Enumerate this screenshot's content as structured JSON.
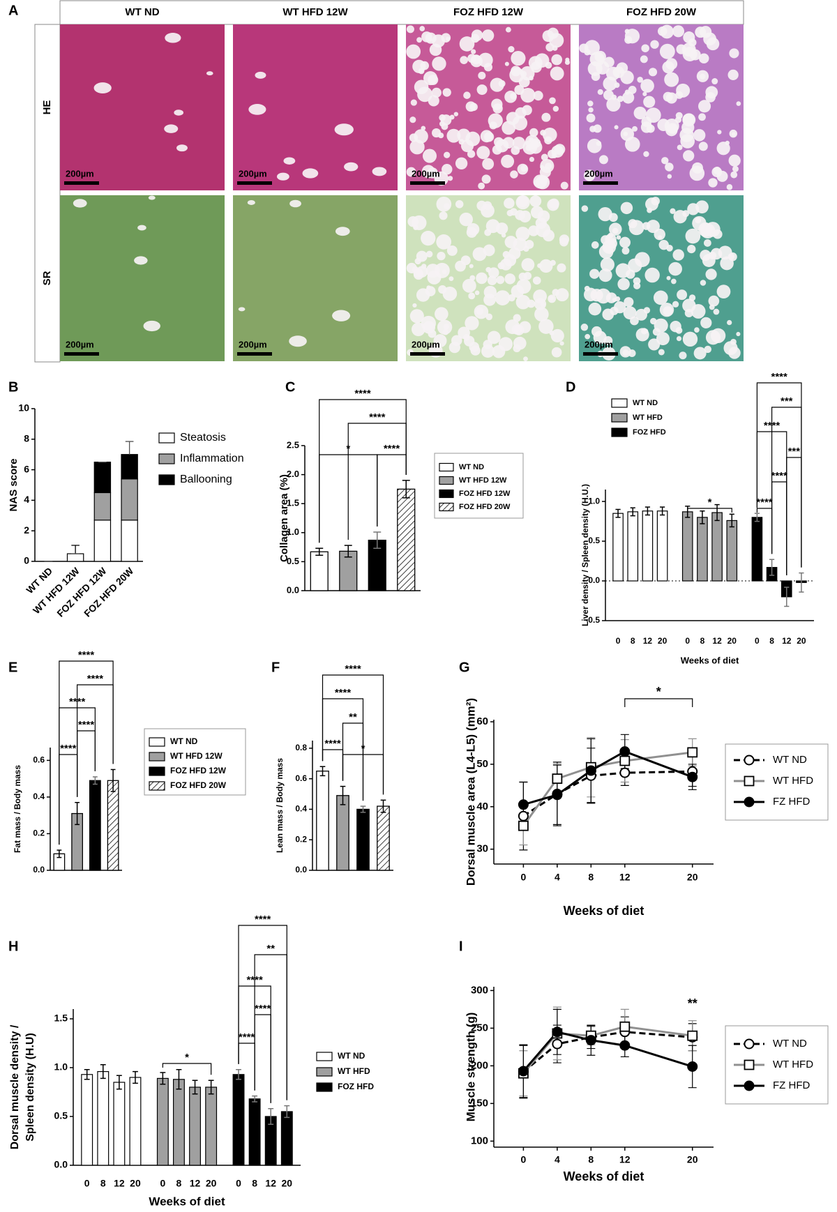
{
  "figure": {
    "panel": "A",
    "columns": [
      "WT ND",
      "WT HFD 12W",
      "FOZ HFD 12W",
      "FOZ HFD 20W"
    ],
    "rows": [
      "HE",
      "SR"
    ],
    "scale_bar": "200µm"
  },
  "chart_data": [
    {
      "type": "stacked_bar",
      "panel": "B",
      "y_label": "NAS score",
      "categories": [
        "WT ND",
        "WT HFD 12W",
        "FOZ HFD 12W",
        "FOZ HFD 20W"
      ],
      "ylim": [
        0,
        10
      ],
      "yticks": [
        0,
        2,
        4,
        6,
        8,
        10
      ],
      "series": [
        {
          "name": "Steatosis",
          "color": "#ffffff",
          "values": [
            0,
            0.5,
            2.7,
            2.7
          ],
          "errors": [
            0,
            0.55,
            0.25,
            0.8
          ]
        },
        {
          "name": "Inflammation",
          "color": "#a0a0a0",
          "values": [
            0,
            0,
            1.8,
            2.7
          ],
          "errors": [
            0,
            0,
            1.0,
            0.45
          ]
        },
        {
          "name": "Ballooning",
          "color": "#000000",
          "values": [
            0,
            0,
            2.0,
            1.6
          ],
          "errors": [
            0,
            0,
            0,
            0.85
          ]
        }
      ]
    },
    {
      "type": "bar",
      "panel": "C",
      "y_label": "Collagen area (%)",
      "categories": [
        "WT ND",
        "WT HFD 12W",
        "FOZ HFD 12W",
        "FOZ HFD 20W"
      ],
      "colors": [
        "#ffffff",
        "#a0a0a0",
        "#000000",
        "#ffffff"
      ],
      "hatched": [
        false,
        false,
        false,
        true
      ],
      "values": [
        0.67,
        0.68,
        0.87,
        1.75
      ],
      "errors": [
        0.06,
        0.1,
        0.14,
        0.15
      ],
      "ylim": [
        0,
        2.5
      ],
      "yticks": [
        {
          "value": 0,
          "label": "0.0"
        },
        0.5,
        {
          "value": 1,
          "label": "1.0"
        },
        1.5,
        {
          "value": 2,
          "label": "2.0"
        },
        2.5
      ],
      "annotations": [
        "****",
        "****",
        "*",
        "****"
      ]
    },
    {
      "type": "grouped_bar",
      "panel": "D",
      "y_label": "Liver density  / Spleen density (H.U.)",
      "x_label": "Weeks of diet",
      "categories": [
        "0",
        "8",
        "12",
        "20"
      ],
      "series": [
        {
          "name": "WT ND",
          "color": "#ffffff",
          "values": [
            0.85,
            0.87,
            0.88,
            0.88
          ],
          "errors": [
            0.05,
            0.05,
            0.05,
            0.05
          ]
        },
        {
          "name": "WT HFD",
          "color": "#a0a0a0",
          "values": [
            0.87,
            0.8,
            0.86,
            0.76
          ],
          "errors": [
            0.07,
            0.08,
            0.1,
            0.08
          ]
        },
        {
          "name": "FOZ HFD",
          "color": "#000000",
          "values": [
            0.8,
            0.17,
            -0.2,
            -0.02
          ],
          "errors": [
            0.05,
            0.1,
            0.12,
            0.12
          ]
        }
      ],
      "ylim": [
        -0.5,
        1.15
      ],
      "yticks": [
        -0.5,
        {
          "value": 0,
          "label": "0.0"
        },
        0.5,
        {
          "value": 1,
          "label": "1.0"
        }
      ],
      "zero_line": true,
      "annotations": [
        "****",
        "***",
        "****",
        "***",
        "****",
        "****",
        "*"
      ]
    },
    {
      "type": "bar",
      "panel": "E",
      "y_label": "Fat mass / Body mass",
      "categories": [
        "WT ND",
        "WT HFD 12W",
        "FOZ HFD 12W",
        "FOZ HFD 20W"
      ],
      "colors": [
        "#ffffff",
        "#a0a0a0",
        "#000000",
        "#ffffff"
      ],
      "hatched": [
        false,
        false,
        false,
        true
      ],
      "values": [
        0.09,
        0.31,
        0.49,
        0.49
      ],
      "errors": [
        0.02,
        0.06,
        0.02,
        0.06
      ],
      "ylim": [
        0,
        0.67
      ],
      "yticks": [
        {
          "value": 0,
          "label": "0.0"
        },
        0.2,
        0.4,
        0.6
      ],
      "annotations": [
        "****",
        "****",
        "****",
        "****",
        "****"
      ]
    },
    {
      "type": "bar",
      "panel": "F",
      "y_label": "Lean mass / Body mass",
      "colors": [
        "#ffffff",
        "#a0a0a0",
        "#000000",
        "#ffffff"
      ],
      "hatched": [
        false,
        false,
        false,
        true
      ],
      "values": [
        0.65,
        0.49,
        0.4,
        0.42
      ],
      "errors": [
        0.03,
        0.06,
        0.02,
        0.04
      ],
      "ylim": [
        0,
        0.85
      ],
      "yticks": [
        {
          "value": 0,
          "label": "0.0"
        },
        0.2,
        0.4,
        0.6,
        0.8
      ],
      "annotations": [
        "****",
        "****",
        "**",
        "****",
        "*"
      ]
    },
    {
      "type": "line",
      "panel": "G",
      "y_label": "Dorsal muscle area (L4-L5) (mm²)",
      "x_label": "Weeks of diet",
      "x": [
        0,
        4,
        8,
        12,
        20
      ],
      "xlim": [
        -3.5,
        22.5
      ],
      "xticks": [
        0,
        4,
        8,
        12,
        20
      ],
      "ylim": [
        26.5,
        60.5
      ],
      "yticks": [
        30,
        40,
        50,
        60
      ],
      "series": [
        {
          "name": "WT ND",
          "color": "#000000",
          "dashed": true,
          "marker": "circle",
          "marker_fill": "#ffffff",
          "values": [
            37.8,
            43,
            47.3,
            48,
            48.3
          ],
          "errors": [
            8,
            7.5,
            6.5,
            3,
            3.5
          ]
        },
        {
          "name": "WT HFD",
          "color": "#909090",
          "dashed": false,
          "marker": "square",
          "marker_fill": "#ffffff",
          "values": [
            35.5,
            46.6,
            49.3,
            50.8,
            52.8
          ],
          "errors": [
            4.5,
            3.5,
            7,
            5,
            3.2
          ]
        },
        {
          "name": "FZ HFD",
          "color": "#000000",
          "dashed": false,
          "marker": "circle",
          "marker_fill": "#000000",
          "values": [
            40.5,
            42.8,
            48.5,
            53,
            47
          ],
          "errors": [
            5.3,
            7,
            7.5,
            4,
            3
          ]
        }
      ],
      "annotations": [
        "*"
      ]
    },
    {
      "type": "grouped_bar",
      "panel": "H",
      "y_label": [
        "Dorsal muscle density /",
        "Spleen density (H.U)"
      ],
      "x_label": "Weeks of diet",
      "categories": [
        "0",
        "8",
        "12",
        "20"
      ],
      "series": [
        {
          "name": "WT ND",
          "color": "#ffffff",
          "values": [
            0.93,
            0.96,
            0.85,
            0.9
          ],
          "errors": [
            0.05,
            0.07,
            0.07,
            0.06
          ]
        },
        {
          "name": "WT HFD",
          "color": "#a0a0a0",
          "values": [
            0.89,
            0.88,
            0.8,
            0.8
          ],
          "errors": [
            0.06,
            0.1,
            0.07,
            0.07
          ]
        },
        {
          "name": "FOZ HFD",
          "color": "#000000",
          "values": [
            0.93,
            0.68,
            0.5,
            0.55
          ],
          "errors": [
            0.05,
            0.03,
            0.08,
            0.06
          ]
        }
      ],
      "ylim": [
        0,
        1.6
      ],
      "yticks": [
        {
          "value": 0,
          "label": "0.0"
        },
        0.5,
        {
          "value": 1,
          "label": "1.0"
        },
        1.5
      ],
      "annotations": [
        "****",
        "**",
        "****",
        "****",
        "****",
        "*"
      ]
    },
    {
      "type": "line",
      "panel": "I",
      "y_label": "Muscle strength (g)",
      "x_label": "Weeks of diet",
      "x": [
        0,
        4,
        8,
        12,
        20
      ],
      "xlim": [
        -3.5,
        22.5
      ],
      "xticks": [
        0,
        4,
        8,
        12,
        20
      ],
      "ylim": [
        92,
        305
      ],
      "yticks": [
        100,
        150,
        200,
        250,
        300
      ],
      "series": [
        {
          "name": "WT ND",
          "color": "#000000",
          "dashed": true,
          "marker": "circle",
          "marker_fill": "#ffffff",
          "values": [
            192,
            229,
            238,
            245,
            238
          ],
          "errors": [
            35,
            25,
            15,
            20,
            18
          ]
        },
        {
          "name": "WT HFD",
          "color": "#909090",
          "dashed": false,
          "marker": "square",
          "marker_fill": "#ffffff",
          "values": [
            190,
            243,
            240,
            252,
            240
          ],
          "errors": [
            30,
            35,
            12,
            23,
            20
          ]
        },
        {
          "name": "FZ HFD",
          "color": "#000000",
          "dashed": false,
          "marker": "circle",
          "marker_fill": "#000000",
          "values": [
            193,
            245,
            234,
            227,
            199
          ],
          "errors": [
            35,
            30,
            20,
            15,
            28
          ]
        }
      ],
      "annotations": [
        "**"
      ]
    }
  ]
}
